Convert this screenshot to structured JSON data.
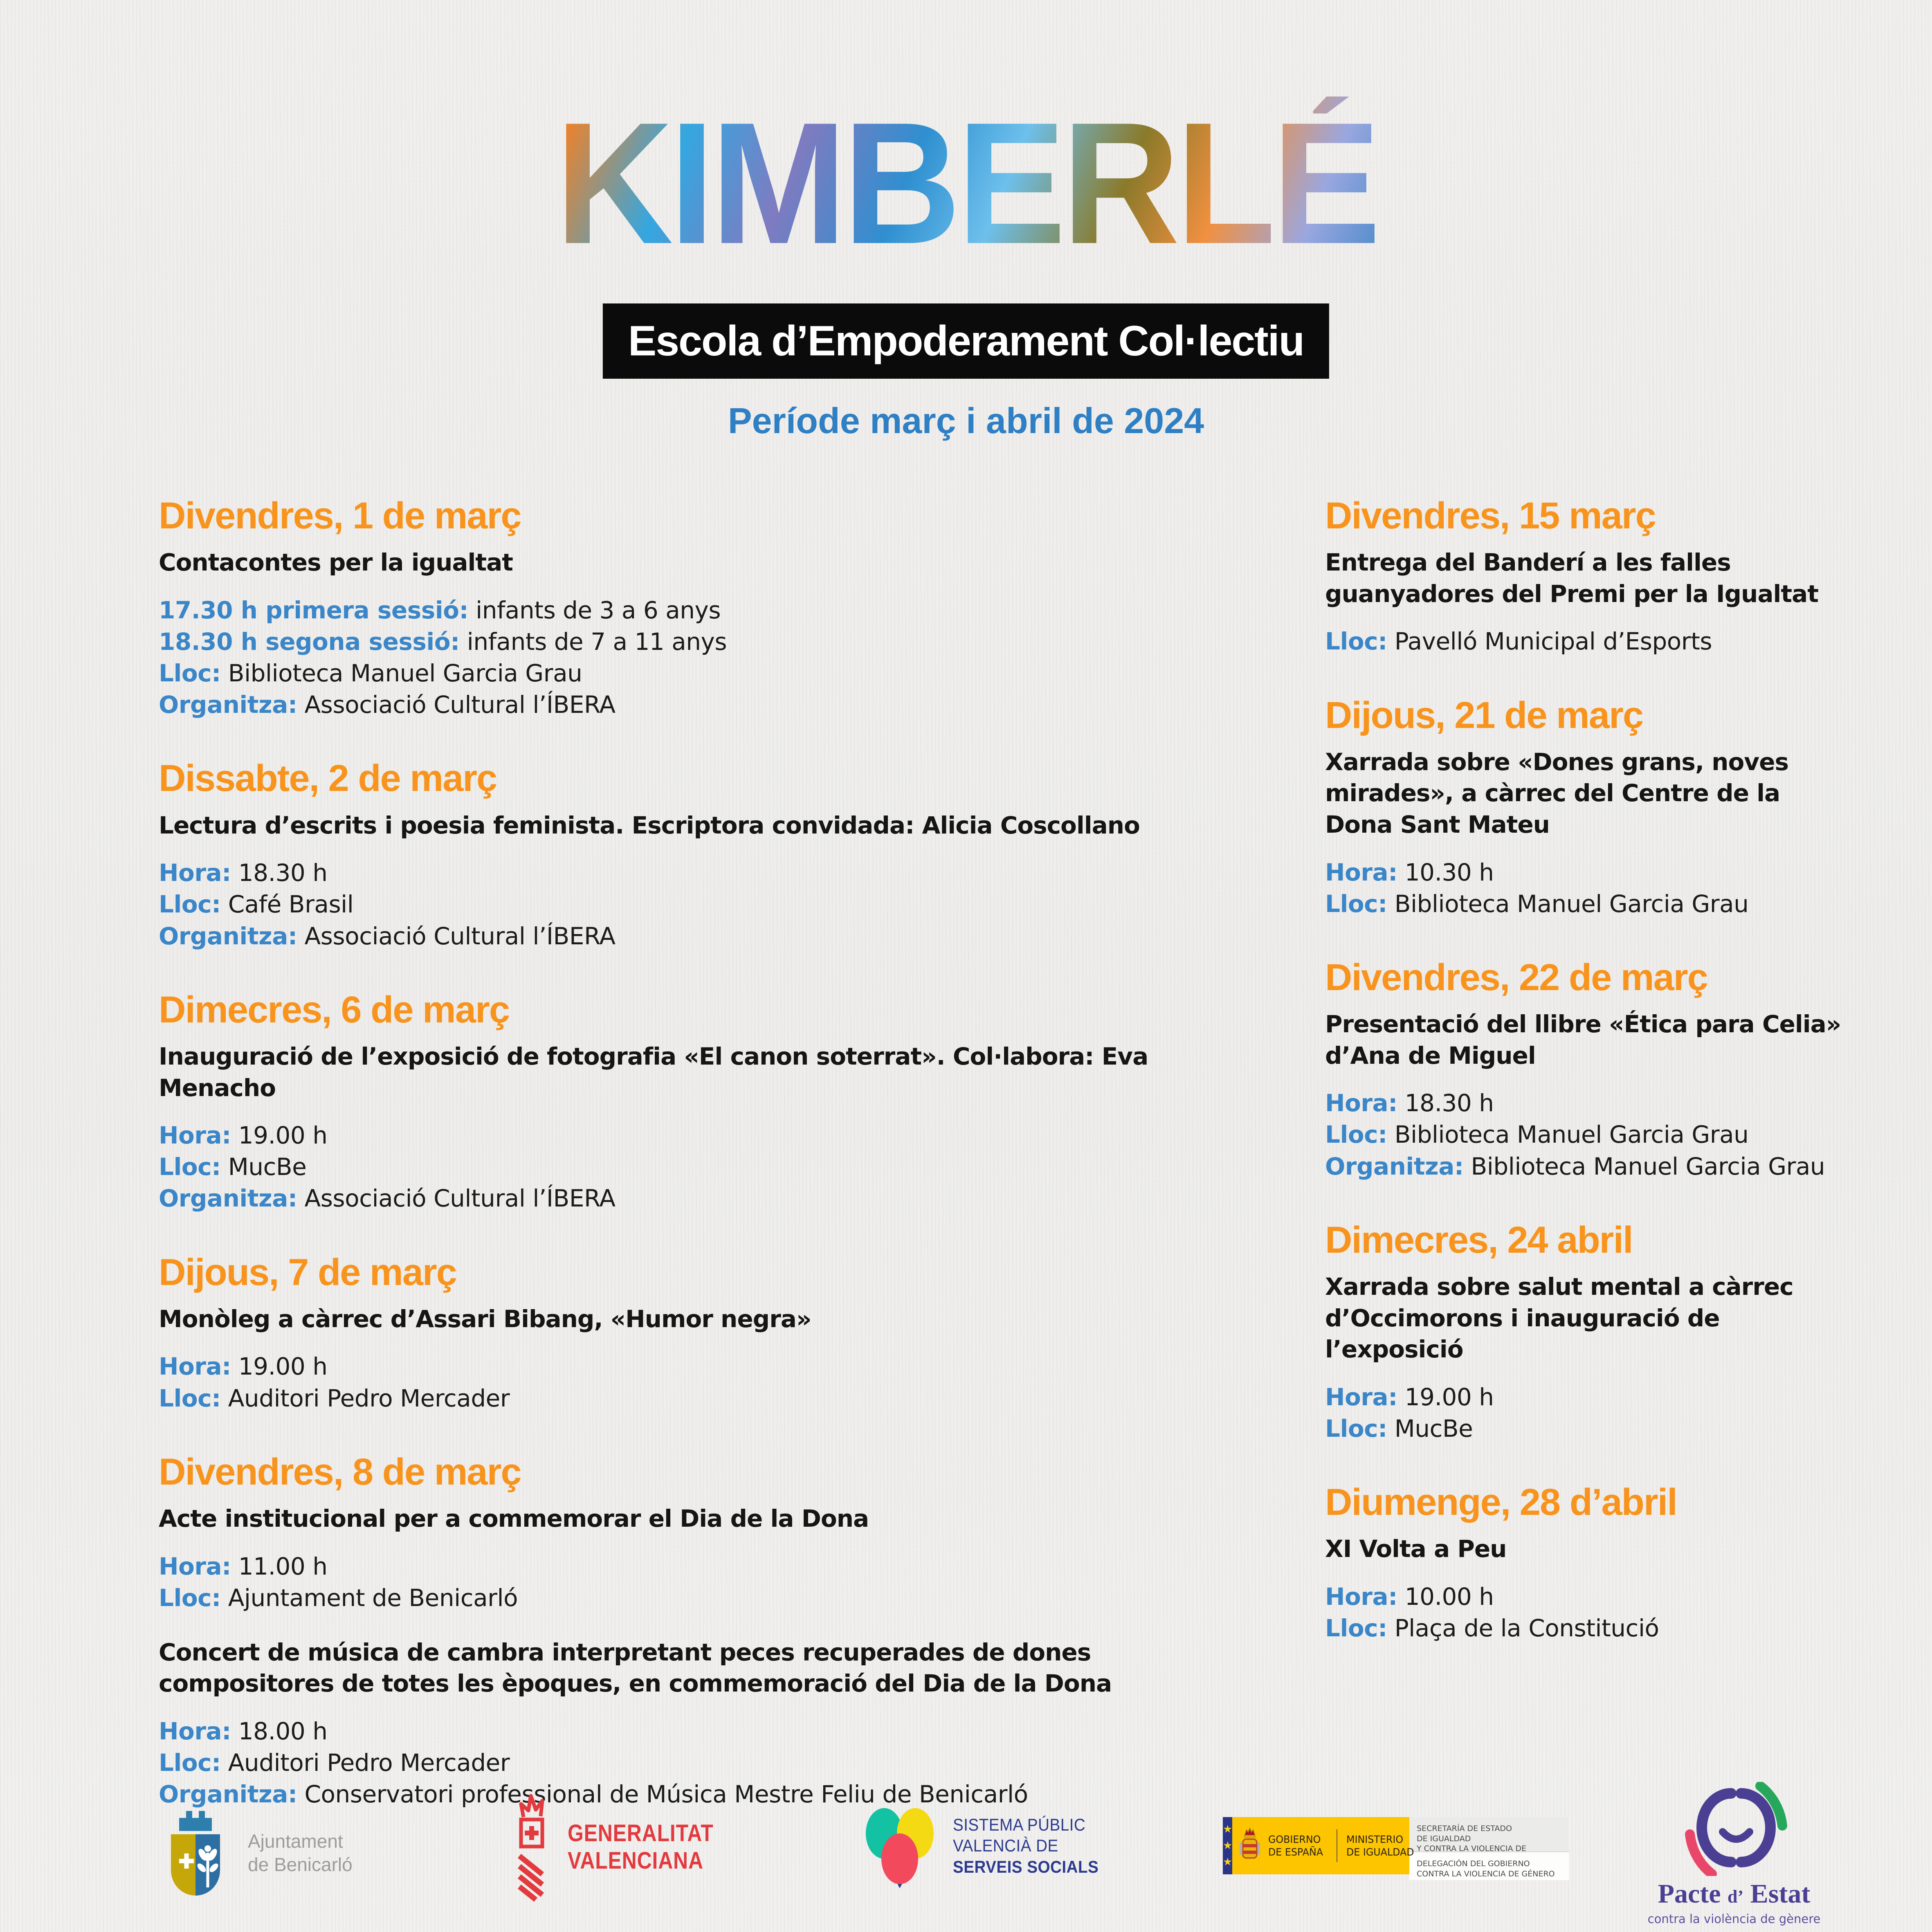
{
  "header": {
    "logo_text": "KIMBERLÉ",
    "banner": "Escola d’Empoderament Col·lectiu",
    "subtitle": "Període març i abril de 2024"
  },
  "colors": {
    "heading_orange": "#F8941D",
    "label_blue": "#3A86C8",
    "subtitle_blue": "#2E7FC4",
    "banner_bg": "#0B0B0B",
    "body_text": "#1B1B1B",
    "paper_bg": "#EFEEEC"
  },
  "events_left": [
    {
      "heading": "Divendres, 1 de març",
      "items": [
        {
          "type": "title",
          "text": "Contacontes per la igualtat"
        },
        {
          "type": "detail",
          "label": "17.30 h primera sessió:",
          "text": "infants de 3 a 6 anys"
        },
        {
          "type": "detail",
          "label": "18.30 h segona sessió:",
          "text": "infants de 7 a 11 anys"
        },
        {
          "type": "detail",
          "label": "Lloc:",
          "text": "Biblioteca Manuel Garcia Grau"
        },
        {
          "type": "detail",
          "label": "Organitza:",
          "text": "Associació Cultural l’ÍBERA"
        }
      ]
    },
    {
      "heading": "Dissabte, 2 de març",
      "items": [
        {
          "type": "title",
          "text": "Lectura d’escrits i poesia feminista.  Escriptora convidada: Alicia Coscollano"
        },
        {
          "type": "detail",
          "label": "Hora:",
          "text": "18.30 h"
        },
        {
          "type": "detail",
          "label": "Lloc:",
          "text": "Café Brasil"
        },
        {
          "type": "detail",
          "label": "Organitza:",
          "text": "Associació Cultural l’ÍBERA"
        }
      ]
    },
    {
      "heading": "Dimecres, 6 de març",
      "items": [
        {
          "type": "title",
          "text": "Inauguració de l’exposició de fotografia «El canon soterrat». Col·labora: Eva Menacho"
        },
        {
          "type": "detail",
          "label": "Hora:",
          "text": "19.00 h"
        },
        {
          "type": "detail",
          "label": "Lloc:",
          "text": "MucBe"
        },
        {
          "type": "detail",
          "label": "Organitza:",
          "text": "Associació Cultural l’ÍBERA"
        }
      ]
    },
    {
      "heading": "Dijous, 7 de març",
      "items": [
        {
          "type": "title",
          "text": "Monòleg a càrrec d’Assari Bibang, «Humor negra»"
        },
        {
          "type": "detail",
          "label": "Hora:",
          "text": "19.00 h"
        },
        {
          "type": "detail",
          "label": "Lloc:",
          "text": "Auditori Pedro Mercader"
        }
      ]
    },
    {
      "heading": "Divendres, 8 de març",
      "items": [
        {
          "type": "title",
          "text": "Acte institucional per a commemorar el Dia de la Dona"
        },
        {
          "type": "detail",
          "label": "Hora:",
          "text": "11.00 h"
        },
        {
          "type": "detail",
          "label": "Lloc:",
          "text": "Ajuntament de Benicarló"
        },
        {
          "type": "title",
          "text": "Concert de música de cambra interpretant peces recuperades de dones compositores de totes les èpoques, en commemoració del Dia de la Dona"
        },
        {
          "type": "detail",
          "label": "Hora:",
          "text": "18.00 h"
        },
        {
          "type": "detail",
          "label": "Lloc:",
          "text": "Auditori Pedro Mercader"
        },
        {
          "type": "detail",
          "label": "Organitza:",
          "text": "Conservatori professional de Música Mestre Feliu de Benicarló"
        }
      ]
    }
  ],
  "events_right": [
    {
      "heading": "Divendres, 15 març",
      "items": [
        {
          "type": "title",
          "text": "Entrega del Banderí a les falles guanyadores del Premi per la Igualtat"
        },
        {
          "type": "detail",
          "label": "Lloc:",
          "text": "Pavelló Municipal d’Esports"
        }
      ]
    },
    {
      "heading": "Dijous, 21 de març",
      "items": [
        {
          "type": "title",
          "text": "Xarrada sobre «Dones grans, noves mirades», a càrrec del Centre de la Dona Sant Mateu"
        },
        {
          "type": "detail",
          "label": "Hora:",
          "text": "10.30 h"
        },
        {
          "type": "detail",
          "label": "Lloc:",
          "text": "Biblioteca Manuel Garcia Grau"
        }
      ]
    },
    {
      "heading": "Divendres, 22 de març",
      "items": [
        {
          "type": "title",
          "text": "Presentació del llibre «Ética para Celia» d’Ana de Miguel"
        },
        {
          "type": "detail",
          "label": "Hora:",
          "text": "18.30 h"
        },
        {
          "type": "detail",
          "label": "Lloc:",
          "text": "Biblioteca Manuel Garcia Grau"
        },
        {
          "type": "detail",
          "label": "Organitza:",
          "text": "Biblioteca Manuel Garcia Grau"
        }
      ]
    },
    {
      "heading": "Dimecres, 24 abril",
      "items": [
        {
          "type": "title",
          "text": "Xarrada sobre salut mental a càrrec d’Occimorons i inauguració de l’exposició"
        },
        {
          "type": "detail",
          "label": "Hora:",
          "text": "19.00 h"
        },
        {
          "type": "detail",
          "label": "Lloc:",
          "text": "MucBe"
        }
      ]
    },
    {
      "heading": "Diumenge, 28 d’abril",
      "items": [
        {
          "type": "title",
          "text": "XI Volta a Peu"
        },
        {
          "type": "detail",
          "label": "Hora:",
          "text": "10.00 h"
        },
        {
          "type": "detail",
          "label": "Lloc:",
          "text": "Plaça de la Constitució"
        }
      ]
    }
  ],
  "footer": {
    "benicarlo": {
      "line1": "Ajuntament",
      "line2": "de Benicarló"
    },
    "generalitat": {
      "line1": "GENERALITAT",
      "line2": "VALENCIANA"
    },
    "sistema": {
      "line1": "SISTEMA PÚBLIC",
      "line2": "VALENCIÀ DE",
      "line3": "SERVEIS SOCIALS"
    },
    "gobierno": {
      "gov_line1": "GOBIERNO",
      "gov_line2": "DE ESPAÑA",
      "min_line1": "MINISTERIO",
      "min_line2": "DE IGUALDAD",
      "sec_line1": "SECRETARÍA DE ESTADO",
      "sec_line2": "DE IGUALDAD",
      "sec_line3": "Y CONTRA LA VIOLENCIA DE GÉNERO",
      "del_line1": "DELEGACIÓN DEL GOBIERNO",
      "del_line2": "CONTRA LA VIOLENCIA DE GÉNERO"
    },
    "pacte": {
      "word1": "Pacte",
      "word2": "d’",
      "word3": "Estat",
      "tagline": "contra la violència de gènere"
    }
  }
}
